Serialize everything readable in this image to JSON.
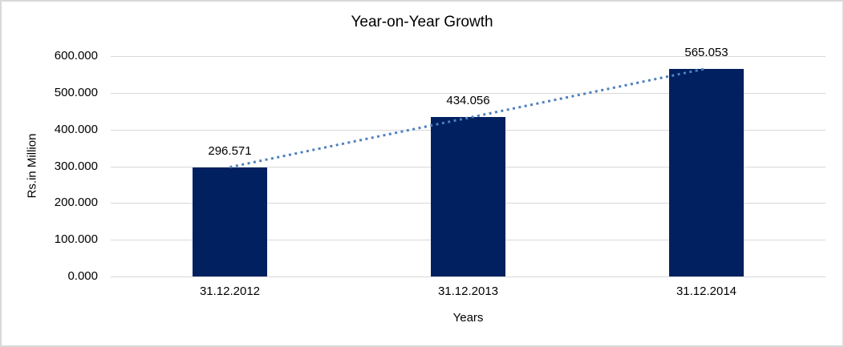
{
  "chart_data": {
    "type": "bar",
    "title": "Year-on-Year Growth",
    "xlabel": "Years",
    "ylabel": "Rs.in Million",
    "categories": [
      "31.12.2012",
      "31.12.2013",
      "31.12.2014"
    ],
    "values": [
      296.571,
      434.056,
      565.053
    ],
    "data_labels": [
      "296.571",
      "434.056",
      "565.053"
    ],
    "ylim": [
      0,
      600
    ],
    "ytick_step": 100,
    "ytick_labels": [
      "0.000",
      "100.000",
      "200.000",
      "300.000",
      "400.000",
      "500.000",
      "600.000"
    ],
    "grid": true,
    "legend_position": "none",
    "colors": {
      "bar": "#002060",
      "trendline": "#4f81bd",
      "gridline": "#d9d9d9",
      "text": "#000000",
      "chart_border": "#d9d9d9",
      "background": "#ffffff"
    },
    "trendline": {
      "type": "linear",
      "style": "dotted"
    }
  }
}
